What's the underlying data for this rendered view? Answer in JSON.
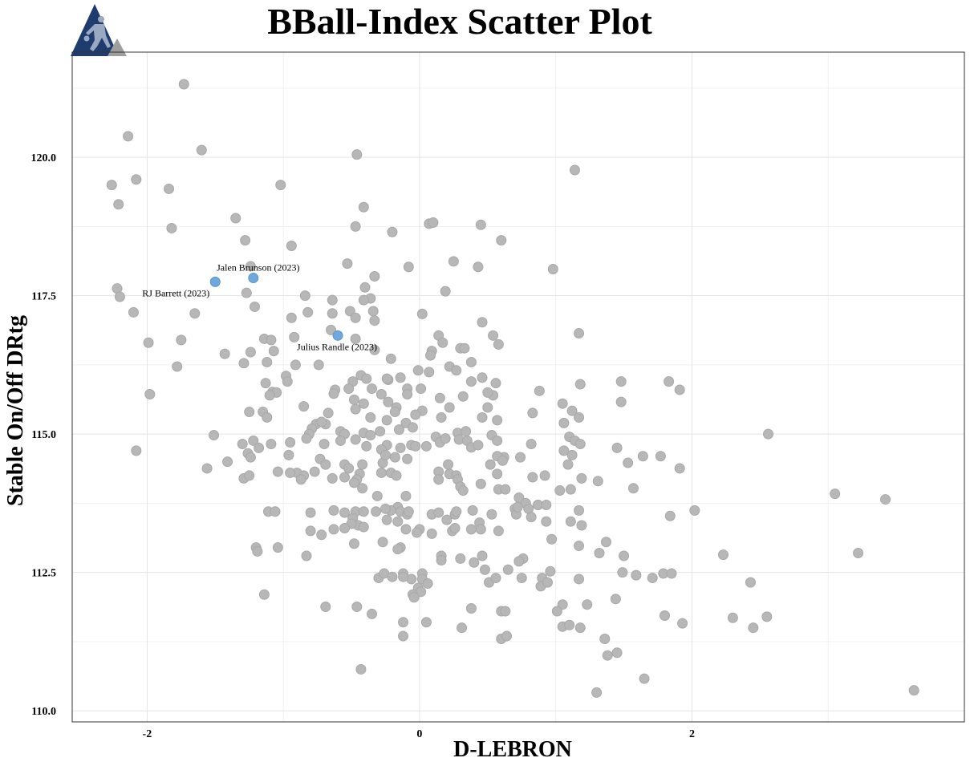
{
  "colors": {
    "point": "#b7b7b7",
    "point_stroke": "#a8a8a8",
    "highlight": "#6fa8dc",
    "highlight_stroke": "#5b95c9",
    "logo_bg": "#1f3c6e",
    "logo_accent": "#9e9e9e"
  },
  "logo": {
    "icon": "basketball-player-icon"
  },
  "chart_data": {
    "type": "scatter",
    "title": "BBall-Index Scatter Plot",
    "xlabel": "D-LEBRON",
    "ylabel": "Stable On/Off DRtg",
    "xlim": [
      -2.55,
      4.0
    ],
    "ylim": [
      109.8,
      121.9
    ],
    "xticks": [
      -2,
      0,
      2
    ],
    "xtick_labels": [
      "-2",
      "0",
      "2"
    ],
    "yticks": [
      110.0,
      112.5,
      115.0,
      117.5,
      120.0
    ],
    "ytick_labels": [
      "110.0",
      "112.5",
      "115.0",
      "117.5",
      "120.0"
    ],
    "grid": true,
    "highlighted": [
      {
        "label": "Jalen Brunson (2023)",
        "x": -1.22,
        "y": 117.82
      },
      {
        "label": "RJ Barrett (2023)",
        "x": -1.5,
        "y": 117.75
      },
      {
        "label": "Julius Randle (2023)",
        "x": -0.6,
        "y": 116.78
      }
    ],
    "points": [
      [
        -1.73,
        121.32
      ],
      [
        -2.14,
        120.38
      ],
      [
        -1.6,
        120.13
      ],
      [
        -0.46,
        120.05
      ],
      [
        1.14,
        119.77
      ],
      [
        -2.26,
        119.5
      ],
      [
        -2.08,
        119.6
      ],
      [
        -1.84,
        119.43
      ],
      [
        -1.02,
        119.5
      ],
      [
        -2.21,
        119.15
      ],
      [
        -0.41,
        119.1
      ],
      [
        -1.35,
        118.9
      ],
      [
        0.07,
        118.8
      ],
      [
        0.1,
        118.82
      ],
      [
        -0.47,
        118.75
      ],
      [
        0.45,
        118.78
      ],
      [
        -1.82,
        118.72
      ],
      [
        -0.2,
        118.65
      ],
      [
        -1.28,
        118.5
      ],
      [
        0.6,
        118.5
      ],
      [
        -0.94,
        118.4
      ],
      [
        0.25,
        118.12
      ],
      [
        -0.53,
        118.08
      ],
      [
        -0.08,
        118.02
      ],
      [
        0.43,
        118.02
      ],
      [
        0.98,
        117.98
      ],
      [
        -1.24,
        118.03
      ],
      [
        -0.33,
        117.85
      ],
      [
        -0.4,
        117.65
      ],
      [
        0.19,
        117.58
      ],
      [
        -2.22,
        117.63
      ],
      [
        -2.2,
        117.48
      ],
      [
        -1.27,
        117.55
      ],
      [
        -0.36,
        117.45
      ],
      [
        -0.41,
        117.42
      ],
      [
        -0.64,
        117.42
      ],
      [
        -0.84,
        117.5
      ],
      [
        -2.1,
        117.2
      ],
      [
        -1.65,
        117.18
      ],
      [
        -1.21,
        117.3
      ],
      [
        -0.34,
        117.22
      ],
      [
        -0.51,
        117.22
      ],
      [
        -0.82,
        117.2
      ],
      [
        -0.64,
        117.18
      ],
      [
        0.02,
        117.17
      ],
      [
        -0.47,
        117.1
      ],
      [
        -0.33,
        117.05
      ],
      [
        -0.94,
        117.1
      ],
      [
        0.46,
        117.02
      ],
      [
        -0.65,
        116.88
      ],
      [
        -1.14,
        116.72
      ],
      [
        -1.09,
        116.7
      ],
      [
        -0.92,
        116.75
      ],
      [
        -1.75,
        116.7
      ],
      [
        -1.99,
        116.65
      ],
      [
        0.14,
        116.78
      ],
      [
        0.54,
        116.78
      ],
      [
        1.17,
        116.82
      ],
      [
        0.58,
        116.62
      ],
      [
        0.17,
        116.65
      ],
      [
        -0.47,
        116.72
      ],
      [
        0.3,
        116.55
      ],
      [
        0.33,
        116.55
      ],
      [
        0.09,
        116.5
      ],
      [
        -1.07,
        116.5
      ],
      [
        -0.33,
        116.52
      ],
      [
        -1.24,
        116.48
      ],
      [
        -1.43,
        116.45
      ],
      [
        -0.21,
        116.36
      ],
      [
        0.08,
        116.42
      ],
      [
        -1.78,
        116.22
      ],
      [
        -1.29,
        116.28
      ],
      [
        -1.12,
        116.3
      ],
      [
        -0.91,
        116.25
      ],
      [
        -0.74,
        116.25
      ],
      [
        0.38,
        116.3
      ],
      [
        0.22,
        116.22
      ],
      [
        0.27,
        116.15
      ],
      [
        -0.01,
        116.15
      ],
      [
        0.07,
        116.12
      ],
      [
        -0.98,
        116.05
      ],
      [
        -0.43,
        116.06
      ],
      [
        -0.39,
        116.0
      ],
      [
        -0.14,
        116.02
      ],
      [
        -0.23,
        115.98
      ],
      [
        -0.24,
        116.0
      ],
      [
        0.46,
        116.02
      ],
      [
        1.48,
        115.95
      ],
      [
        1.83,
        115.95
      ],
      [
        -0.97,
        115.95
      ],
      [
        -1.13,
        115.92
      ],
      [
        -0.49,
        115.95
      ],
      [
        0.38,
        115.95
      ],
      [
        0.56,
        115.92
      ],
      [
        1.18,
        115.9
      ],
      [
        -0.35,
        115.82
      ],
      [
        -0.09,
        115.82
      ],
      [
        -0.62,
        115.8
      ],
      [
        -0.52,
        115.82
      ],
      [
        -1.98,
        115.72
      ],
      [
        -1.08,
        115.76
      ],
      [
        -1.05,
        115.75
      ],
      [
        -1.1,
        115.7
      ],
      [
        -0.63,
        115.73
      ],
      [
        -0.28,
        115.72
      ],
      [
        -0.09,
        115.72
      ],
      [
        0.01,
        115.82
      ],
      [
        0.54,
        115.7
      ],
      [
        0.32,
        115.68
      ],
      [
        0.88,
        115.78
      ],
      [
        1.91,
        115.8
      ],
      [
        0.15,
        115.65
      ],
      [
        0.5,
        115.75
      ],
      [
        -0.48,
        115.62
      ],
      [
        -0.41,
        115.55
      ],
      [
        -0.23,
        115.58
      ],
      [
        -0.17,
        115.48
      ],
      [
        -0.18,
        115.4
      ],
      [
        0.02,
        115.42
      ],
      [
        -0.03,
        115.35
      ],
      [
        0.5,
        115.48
      ],
      [
        1.05,
        115.55
      ],
      [
        1.12,
        115.42
      ],
      [
        0.83,
        115.38
      ],
      [
        1.06,
        115.2
      ],
      [
        1.17,
        115.3
      ],
      [
        1.48,
        115.58
      ],
      [
        -0.47,
        115.45
      ],
      [
        -0.36,
        115.3
      ],
      [
        -0.24,
        115.25
      ],
      [
        -0.1,
        115.2
      ],
      [
        0.16,
        115.3
      ],
      [
        0.22,
        115.48
      ],
      [
        0.46,
        115.3
      ],
      [
        0.57,
        115.25
      ],
      [
        -1.25,
        115.4
      ],
      [
        -1.15,
        115.4
      ],
      [
        -1.12,
        115.3
      ],
      [
        -0.85,
        115.5
      ],
      [
        -0.67,
        115.38
      ],
      [
        -0.69,
        115.18
      ],
      [
        -0.76,
        115.18
      ],
      [
        -0.72,
        115.22
      ],
      [
        -0.79,
        115.1
      ],
      [
        -0.81,
        115.0
      ],
      [
        -0.83,
        114.92
      ],
      [
        -0.58,
        115.05
      ],
      [
        -0.55,
        115.0
      ],
      [
        -0.41,
        115.02
      ],
      [
        -0.36,
        114.98
      ],
      [
        -0.29,
        115.05
      ],
      [
        -0.15,
        115.08
      ],
      [
        -0.05,
        115.12
      ],
      [
        -0.06,
        114.8
      ],
      [
        0.05,
        114.78
      ],
      [
        0.12,
        114.95
      ],
      [
        0.15,
        114.85
      ],
      [
        0.19,
        114.92
      ],
      [
        0.28,
        115.02
      ],
      [
        0.34,
        115.05
      ],
      [
        0.29,
        114.9
      ],
      [
        0.35,
        114.88
      ],
      [
        0.53,
        114.98
      ],
      [
        0.57,
        114.88
      ],
      [
        0.82,
        114.82
      ],
      [
        1.1,
        114.95
      ],
      [
        1.14,
        114.88
      ],
      [
        1.18,
        114.82
      ],
      [
        -1.51,
        114.98
      ],
      [
        -2.08,
        114.7
      ],
      [
        -1.3,
        114.82
      ],
      [
        -1.22,
        114.88
      ],
      [
        -1.18,
        114.75
      ],
      [
        -1.09,
        114.82
      ],
      [
        -0.95,
        114.85
      ],
      [
        -0.7,
        114.82
      ],
      [
        -0.58,
        114.88
      ],
      [
        -0.47,
        114.9
      ],
      [
        -0.39,
        114.78
      ],
      [
        -0.24,
        114.8
      ],
      [
        -0.28,
        114.72
      ],
      [
        -0.14,
        114.75
      ],
      [
        -0.03,
        114.78
      ],
      [
        0.38,
        114.76
      ],
      [
        0.43,
        114.8
      ],
      [
        0.62,
        114.58
      ],
      [
        0.57,
        114.6
      ],
      [
        0.74,
        114.58
      ],
      [
        1.06,
        114.7
      ],
      [
        1.12,
        114.62
      ],
      [
        1.45,
        114.75
      ],
      [
        1.64,
        114.6
      ],
      [
        1.77,
        114.6
      ],
      [
        1.53,
        114.48
      ],
      [
        2.56,
        115.0
      ],
      [
        -1.41,
        114.5
      ],
      [
        -1.26,
        114.65
      ],
      [
        -1.24,
        114.58
      ],
      [
        -0.96,
        114.62
      ],
      [
        -0.73,
        114.55
      ],
      [
        -0.69,
        114.45
      ],
      [
        -0.55,
        114.45
      ],
      [
        -0.52,
        114.38
      ],
      [
        -0.42,
        114.45
      ],
      [
        -0.27,
        114.48
      ],
      [
        -0.25,
        114.62
      ],
      [
        -0.18,
        114.58
      ],
      [
        -0.09,
        114.55
      ],
      [
        0.21,
        114.45
      ],
      [
        0.52,
        114.45
      ],
      [
        0.61,
        114.52
      ],
      [
        1.09,
        114.45
      ],
      [
        -1.56,
        114.38
      ],
      [
        -1.04,
        114.32
      ],
      [
        -0.9,
        114.3
      ],
      [
        -0.85,
        114.25
      ],
      [
        -0.95,
        114.3
      ],
      [
        -0.77,
        114.32
      ],
      [
        -0.55,
        114.22
      ],
      [
        -0.44,
        114.28
      ],
      [
        -0.28,
        114.3
      ],
      [
        -0.21,
        114.3
      ],
      [
        -0.17,
        114.25
      ],
      [
        0.14,
        114.32
      ],
      [
        0.22,
        114.28
      ],
      [
        0.27,
        114.25
      ],
      [
        0.28,
        114.18
      ],
      [
        0.14,
        114.18
      ],
      [
        0.57,
        114.28
      ],
      [
        0.83,
        114.22
      ],
      [
        0.92,
        114.25
      ],
      [
        1.19,
        114.2
      ],
      [
        1.31,
        114.15
      ],
      [
        1.91,
        114.38
      ],
      [
        -1.29,
        114.2
      ],
      [
        -1.25,
        114.25
      ],
      [
        -0.87,
        114.18
      ],
      [
        -0.46,
        114.18
      ],
      [
        -0.48,
        114.12
      ],
      [
        -0.64,
        114.2
      ],
      [
        0.3,
        114.05
      ],
      [
        0.45,
        114.1
      ],
      [
        0.58,
        114.0
      ],
      [
        0.63,
        114.0
      ],
      [
        0.73,
        113.85
      ],
      [
        0.32,
        113.98
      ],
      [
        0.87,
        113.72
      ],
      [
        0.78,
        113.75
      ],
      [
        0.7,
        113.65
      ],
      [
        1.03,
        113.98
      ],
      [
        1.11,
        114.0
      ],
      [
        1.57,
        114.02
      ],
      [
        3.05,
        113.92
      ],
      [
        3.42,
        113.82
      ],
      [
        -0.42,
        114.02
      ],
      [
        -0.31,
        113.88
      ],
      [
        -0.1,
        113.88
      ],
      [
        -0.16,
        113.68
      ],
      [
        -0.14,
        113.6
      ],
      [
        -0.21,
        113.62
      ],
      [
        -1.11,
        113.6
      ],
      [
        -1.06,
        113.6
      ],
      [
        -0.8,
        113.58
      ],
      [
        -0.63,
        113.62
      ],
      [
        -0.47,
        113.6
      ],
      [
        -0.41,
        113.6
      ],
      [
        -0.25,
        113.65
      ],
      [
        -0.32,
        113.6
      ],
      [
        -0.55,
        113.58
      ],
      [
        -0.09,
        113.55
      ],
      [
        -0.08,
        113.6
      ],
      [
        0.09,
        113.55
      ],
      [
        0.14,
        113.58
      ],
      [
        0.26,
        113.55
      ],
      [
        0.27,
        113.6
      ],
      [
        0.2,
        113.45
      ],
      [
        0.39,
        113.62
      ],
      [
        0.44,
        113.4
      ],
      [
        0.53,
        113.55
      ],
      [
        0.71,
        113.55
      ],
      [
        0.72,
        113.68
      ],
      [
        0.8,
        113.65
      ],
      [
        0.87,
        113.72
      ],
      [
        0.93,
        113.72
      ],
      [
        1.17,
        113.62
      ],
      [
        1.84,
        113.52
      ],
      [
        2.02,
        113.62
      ],
      [
        -0.49,
        113.48
      ],
      [
        -0.45,
        113.35
      ],
      [
        -0.5,
        113.38
      ],
      [
        -0.41,
        113.32
      ],
      [
        -0.63,
        113.28
      ],
      [
        -0.55,
        113.3
      ],
      [
        -0.16,
        113.42
      ],
      [
        -0.24,
        113.45
      ],
      [
        -0.1,
        113.28
      ],
      [
        0.0,
        113.28
      ],
      [
        -0.02,
        113.22
      ],
      [
        0.09,
        113.2
      ],
      [
        0.24,
        113.25
      ],
      [
        0.26,
        113.3
      ],
      [
        0.45,
        113.28
      ],
      [
        0.58,
        113.25
      ],
      [
        0.82,
        113.5
      ],
      [
        0.93,
        113.42
      ],
      [
        1.11,
        113.42
      ],
      [
        1.19,
        113.35
      ],
      [
        1.37,
        113.05
      ],
      [
        -0.8,
        113.25
      ],
      [
        -0.72,
        113.18
      ],
      [
        -0.48,
        113.02
      ],
      [
        -0.27,
        113.05
      ],
      [
        -0.14,
        112.95
      ],
      [
        -0.16,
        112.92
      ],
      [
        -1.2,
        112.95
      ],
      [
        -1.19,
        112.88
      ],
      [
        -1.04,
        112.95
      ],
      [
        0.38,
        113.28
      ],
      [
        0.97,
        113.1
      ],
      [
        1.17,
        112.98
      ],
      [
        -0.83,
        112.8
      ],
      [
        0.16,
        112.8
      ],
      [
        0.3,
        112.75
      ],
      [
        0.46,
        112.8
      ],
      [
        0.4,
        112.68
      ],
      [
        0.76,
        112.75
      ],
      [
        0.73,
        112.7
      ],
      [
        1.32,
        112.85
      ],
      [
        1.5,
        112.8
      ],
      [
        2.23,
        112.82
      ],
      [
        3.22,
        112.85
      ],
      [
        0.16,
        112.72
      ],
      [
        0.48,
        112.55
      ],
      [
        0.65,
        112.55
      ],
      [
        0.9,
        112.4
      ],
      [
        0.96,
        112.52
      ],
      [
        -0.3,
        112.4
      ],
      [
        -0.26,
        112.48
      ],
      [
        -0.2,
        112.42
      ],
      [
        -0.12,
        112.48
      ],
      [
        -0.06,
        112.38
      ],
      [
        0.02,
        112.48
      ],
      [
        0.02,
        112.38
      ],
      [
        -0.12,
        112.42
      ],
      [
        0.06,
        112.3
      ],
      [
        0.51,
        112.32
      ],
      [
        0.56,
        112.4
      ],
      [
        0.75,
        112.4
      ],
      [
        1.17,
        112.38
      ],
      [
        1.49,
        112.5
      ],
      [
        1.59,
        112.45
      ],
      [
        1.71,
        112.4
      ],
      [
        1.79,
        112.48
      ],
      [
        1.85,
        112.48
      ],
      [
        2.43,
        112.32
      ],
      [
        -1.14,
        112.1
      ],
      [
        -0.01,
        112.22
      ],
      [
        0.01,
        112.15
      ],
      [
        -0.05,
        112.1
      ],
      [
        -0.04,
        112.05
      ],
      [
        0.89,
        112.25
      ],
      [
        0.94,
        112.32
      ],
      [
        1.05,
        111.92
      ],
      [
        1.23,
        111.92
      ],
      [
        1.44,
        112.02
      ],
      [
        -0.69,
        111.88
      ],
      [
        -0.46,
        111.88
      ],
      [
        -0.35,
        111.75
      ],
      [
        0.38,
        111.85
      ],
      [
        0.6,
        111.8
      ],
      [
        0.63,
        111.8
      ],
      [
        1.01,
        111.8
      ],
      [
        1.8,
        111.72
      ],
      [
        2.3,
        111.68
      ],
      [
        2.55,
        111.7
      ],
      [
        -0.12,
        111.6
      ],
      [
        0.05,
        111.6
      ],
      [
        0.31,
        111.5
      ],
      [
        1.05,
        111.52
      ],
      [
        1.1,
        111.55
      ],
      [
        1.18,
        111.5
      ],
      [
        1.93,
        111.58
      ],
      [
        2.45,
        111.5
      ],
      [
        -0.12,
        111.35
      ],
      [
        0.6,
        111.3
      ],
      [
        0.64,
        111.35
      ],
      [
        1.36,
        111.3
      ],
      [
        1.38,
        111.0
      ],
      [
        1.45,
        111.05
      ],
      [
        -0.43,
        110.75
      ],
      [
        1.3,
        110.33
      ],
      [
        1.65,
        110.58
      ],
      [
        3.63,
        110.37
      ]
    ]
  }
}
